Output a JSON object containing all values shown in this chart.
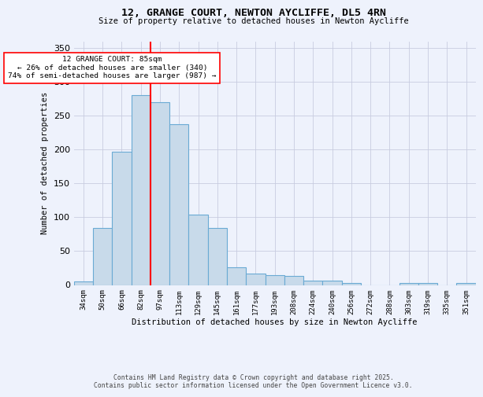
{
  "title": "12, GRANGE COURT, NEWTON AYCLIFFE, DL5 4RN",
  "subtitle": "Size of property relative to detached houses in Newton Aycliffe",
  "xlabel": "Distribution of detached houses by size in Newton Aycliffe",
  "ylabel": "Number of detached properties",
  "categories": [
    "34sqm",
    "50sqm",
    "66sqm",
    "82sqm",
    "97sqm",
    "113sqm",
    "129sqm",
    "145sqm",
    "161sqm",
    "177sqm",
    "193sqm",
    "208sqm",
    "224sqm",
    "240sqm",
    "256sqm",
    "272sqm",
    "288sqm",
    "303sqm",
    "319sqm",
    "335sqm",
    "351sqm"
  ],
  "values": [
    5,
    84,
    197,
    280,
    270,
    238,
    104,
    84,
    26,
    17,
    15,
    13,
    6,
    6,
    3,
    0,
    0,
    3,
    3,
    0,
    3
  ],
  "bar_color": "#c8daea",
  "bar_edge_color": "#6aaad4",
  "grid_color": "#c8cce0",
  "vline_x": 3.5,
  "vline_color": "red",
  "annotation_text": "12 GRANGE COURT: 85sqm\n← 26% of detached houses are smaller (340)\n74% of semi-detached houses are larger (987) →",
  "annotation_box_color": "white",
  "annotation_box_edge": "red",
  "ylim": [
    0,
    360
  ],
  "yticks": [
    0,
    50,
    100,
    150,
    200,
    250,
    300,
    350
  ],
  "footer1": "Contains HM Land Registry data © Crown copyright and database right 2025.",
  "footer2": "Contains public sector information licensed under the Open Government Licence v3.0.",
  "bg_color": "#eef2fc"
}
